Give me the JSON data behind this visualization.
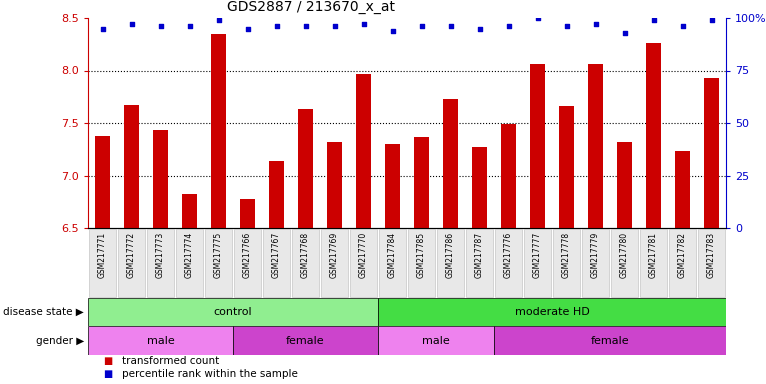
{
  "title": "GDS2887 / 213670_x_at",
  "samples": [
    "GSM217771",
    "GSM217772",
    "GSM217773",
    "GSM217774",
    "GSM217775",
    "GSM217766",
    "GSM217767",
    "GSM217768",
    "GSM217769",
    "GSM217770",
    "GSM217784",
    "GSM217785",
    "GSM217786",
    "GSM217787",
    "GSM217776",
    "GSM217777",
    "GSM217778",
    "GSM217779",
    "GSM217780",
    "GSM217781",
    "GSM217782",
    "GSM217783"
  ],
  "bar_values": [
    7.38,
    7.67,
    7.43,
    6.82,
    8.35,
    6.78,
    7.14,
    7.63,
    7.32,
    7.97,
    7.3,
    7.37,
    7.73,
    7.27,
    7.49,
    8.06,
    7.66,
    8.06,
    7.32,
    8.26,
    7.23,
    7.93
  ],
  "percentile_values": [
    95,
    97,
    96,
    96,
    99,
    95,
    96,
    96,
    96,
    97,
    94,
    96,
    96,
    95,
    96,
    100,
    96,
    97,
    93,
    99,
    96,
    99
  ],
  "bar_color": "#cc0000",
  "dot_color": "#0000cc",
  "ylim_left": [
    6.5,
    8.5
  ],
  "ylim_right": [
    0,
    100
  ],
  "yticks_left": [
    6.5,
    7.0,
    7.5,
    8.0,
    8.5
  ],
  "yticks_right": [
    0,
    25,
    50,
    75,
    100
  ],
  "disease_state_groups": [
    {
      "label": "control",
      "start": 0,
      "end": 10,
      "color": "#90ee90"
    },
    {
      "label": "moderate HD",
      "start": 10,
      "end": 22,
      "color": "#44dd44"
    }
  ],
  "gender_groups": [
    {
      "label": "male",
      "start": 0,
      "end": 5,
      "color": "#ee82ee"
    },
    {
      "label": "female",
      "start": 5,
      "end": 10,
      "color": "#cc44cc"
    },
    {
      "label": "male",
      "start": 10,
      "end": 14,
      "color": "#ee82ee"
    },
    {
      "label": "female",
      "start": 14,
      "end": 22,
      "color": "#cc44cc"
    }
  ],
  "legend_items": [
    {
      "label": "transformed count",
      "color": "#cc0000"
    },
    {
      "label": "percentile rank within the sample",
      "color": "#0000cc"
    }
  ],
  "bg_color": "#ffffff",
  "axis_label_color_left": "#cc0000",
  "axis_label_color_right": "#0000cc"
}
